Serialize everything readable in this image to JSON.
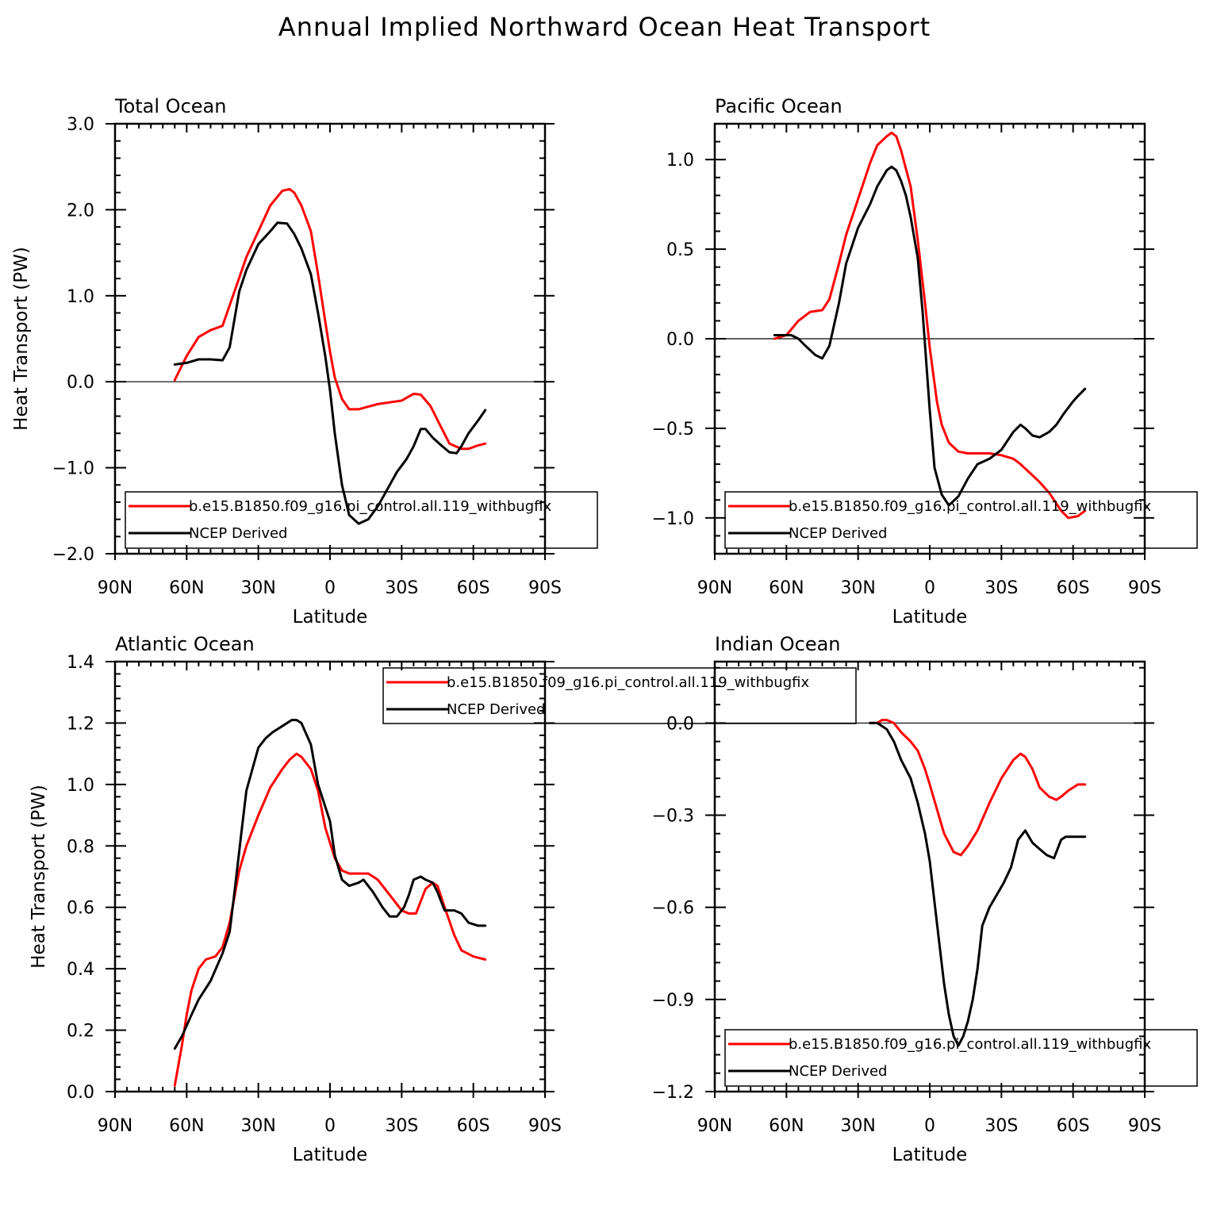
{
  "title": "Annual Implied Northward Ocean Heat Transport",
  "colors": {
    "model": "#ff0000",
    "obs": "#000000",
    "axis": "#000000",
    "background": "#ffffff"
  },
  "legend": {
    "model_label": "b.e15.B1850.f09_g16.pi_control.all.119_withbugfix",
    "obs_label": "NCEP Derived"
  },
  "chart_data": [
    {
      "type": "line",
      "title": "Total Ocean",
      "xlabel": "Latitude",
      "ylabel": "Heat Transport (PW)",
      "xlim": [
        90,
        -90
      ],
      "ylim": [
        -2.0,
        3.0
      ],
      "xticks": [
        90,
        60,
        30,
        0,
        -30,
        -60,
        -90
      ],
      "xtick_labels": [
        "90N",
        "60N",
        "30N",
        "0",
        "30S",
        "60S",
        "90S"
      ],
      "yticks": [
        -2.0,
        -1.0,
        0.0,
        1.0,
        2.0,
        3.0
      ],
      "ytick_labels": [
        "−2.0",
        "−1.0",
        "0.0",
        "1.0",
        "2.0",
        "3.0"
      ],
      "legend_position": "bottom",
      "series": [
        {
          "name": "b.e15.B1850.f09_g16.pi_control.all.119_withbugfix",
          "x": [
            65,
            60,
            55,
            50,
            45,
            40,
            35,
            30,
            25,
            20,
            17,
            15,
            12,
            8,
            5,
            2,
            0,
            -2,
            -5,
            -8,
            -12,
            -16,
            -20,
            -25,
            -30,
            -35,
            -38,
            -42,
            -46,
            -50,
            -55,
            -58,
            -62,
            -65
          ],
          "y": [
            0.02,
            0.3,
            0.52,
            0.6,
            0.65,
            1.05,
            1.45,
            1.75,
            2.05,
            2.22,
            2.24,
            2.2,
            2.05,
            1.75,
            1.25,
            0.7,
            0.35,
            0.05,
            -0.2,
            -0.32,
            -0.32,
            -0.29,
            -0.26,
            -0.24,
            -0.22,
            -0.14,
            -0.15,
            -0.28,
            -0.5,
            -0.72,
            -0.78,
            -0.78,
            -0.74,
            -0.72
          ]
        },
        {
          "name": "NCEP Derived",
          "x": [
            65,
            60,
            55,
            50,
            45,
            42,
            38,
            35,
            30,
            25,
            22,
            18,
            15,
            12,
            8,
            5,
            2,
            0,
            -2,
            -5,
            -8,
            -12,
            -16,
            -20,
            -25,
            -28,
            -32,
            -35,
            -38,
            -40,
            -43,
            -47,
            -50,
            -53,
            -55,
            -58,
            -62,
            -65
          ],
          "y": [
            0.2,
            0.22,
            0.26,
            0.26,
            0.25,
            0.4,
            1.05,
            1.3,
            1.6,
            1.75,
            1.85,
            1.84,
            1.72,
            1.55,
            1.25,
            0.8,
            0.3,
            -0.1,
            -0.6,
            -1.2,
            -1.55,
            -1.65,
            -1.6,
            -1.45,
            -1.2,
            -1.05,
            -0.9,
            -0.75,
            -0.55,
            -0.55,
            -0.65,
            -0.75,
            -0.82,
            -0.83,
            -0.75,
            -0.6,
            -0.45,
            -0.33
          ]
        }
      ]
    },
    {
      "type": "line",
      "title": "Pacific Ocean",
      "xlabel": "Latitude",
      "ylabel": "",
      "xlim": [
        90,
        -90
      ],
      "ylim": [
        -1.2,
        1.2
      ],
      "xticks": [
        90,
        60,
        30,
        0,
        -30,
        -60,
        -90
      ],
      "xtick_labels": [
        "90N",
        "60N",
        "30N",
        "0",
        "30S",
        "60S",
        "90S"
      ],
      "yticks": [
        -1.0,
        -0.5,
        0.0,
        0.5,
        1.0
      ],
      "ytick_labels": [
        "−1.0",
        "−0.5",
        "0.0",
        "0.5",
        "1.0"
      ],
      "legend_position": "bottom",
      "series": [
        {
          "name": "b.e15.B1850.f09_g16.pi_control.all.119_withbugfix",
          "x": [
            65,
            60,
            55,
            50,
            45,
            42,
            38,
            35,
            30,
            25,
            22,
            18,
            16,
            14,
            12,
            8,
            5,
            2,
            0,
            -3,
            -5,
            -8,
            -12,
            -16,
            -20,
            -25,
            -30,
            -35,
            -38,
            -42,
            -46,
            -50,
            -55,
            -58,
            -62,
            -65
          ],
          "y": [
            0,
            0.02,
            0.1,
            0.15,
            0.16,
            0.22,
            0.42,
            0.58,
            0.78,
            0.98,
            1.08,
            1.13,
            1.15,
            1.13,
            1.05,
            0.85,
            0.55,
            0.2,
            -0.05,
            -0.35,
            -0.48,
            -0.58,
            -0.63,
            -0.64,
            -0.64,
            -0.64,
            -0.65,
            -0.67,
            -0.7,
            -0.75,
            -0.8,
            -0.86,
            -0.96,
            -1.0,
            -0.99,
            -0.96
          ]
        },
        {
          "name": "NCEP Derived",
          "x": [
            65,
            62,
            58,
            55,
            52,
            48,
            45,
            42,
            38,
            35,
            30,
            25,
            22,
            18,
            16,
            14,
            12,
            10,
            8,
            5,
            3,
            0,
            -2,
            -5,
            -8,
            -12,
            -16,
            -20,
            -25,
            -30,
            -35,
            -38,
            -40,
            -43,
            -46,
            -50,
            -53,
            -56,
            -60,
            -62,
            -65
          ],
          "y": [
            0.02,
            0.02,
            0.02,
            0.0,
            -0.04,
            -0.09,
            -0.11,
            -0.04,
            0.2,
            0.42,
            0.62,
            0.75,
            0.85,
            0.94,
            0.96,
            0.94,
            0.88,
            0.8,
            0.68,
            0.45,
            0.15,
            -0.4,
            -0.72,
            -0.87,
            -0.93,
            -0.88,
            -0.78,
            -0.7,
            -0.67,
            -0.62,
            -0.52,
            -0.48,
            -0.5,
            -0.54,
            -0.55,
            -0.52,
            -0.48,
            -0.42,
            -0.35,
            -0.32,
            -0.28
          ]
        }
      ]
    },
    {
      "type": "line",
      "title": "Atlantic Ocean",
      "xlabel": "Latitude",
      "ylabel": "Heat Transport (PW)",
      "xlim": [
        90,
        -90
      ],
      "ylim": [
        0.0,
        1.4
      ],
      "xticks": [
        90,
        60,
        30,
        0,
        -30,
        -60,
        -90
      ],
      "xtick_labels": [
        "90N",
        "60N",
        "30N",
        "0",
        "30S",
        "60S",
        "90S"
      ],
      "yticks": [
        0.0,
        0.2,
        0.4,
        0.6,
        0.8,
        1.0,
        1.2,
        1.4
      ],
      "ytick_labels": [
        "0.0",
        "0.2",
        "0.4",
        "0.6",
        "0.8",
        "1.0",
        "1.2",
        "1.4"
      ],
      "legend_position": "top-center",
      "series": [
        {
          "name": "b.e15.B1850.f09_g16.pi_control.all.119_withbugfix",
          "x": [
            65,
            62,
            60,
            58,
            55,
            52,
            48,
            45,
            42,
            38,
            35,
            30,
            25,
            20,
            17,
            14,
            12,
            8,
            5,
            2,
            -2,
            -5,
            -8,
            -12,
            -16,
            -20,
            -25,
            -28,
            -30,
            -33,
            -36,
            -38,
            -40,
            -43,
            -45,
            -48,
            -52,
            -55,
            -60,
            -65
          ],
          "y": [
            0.02,
            0.15,
            0.25,
            0.33,
            0.4,
            0.43,
            0.44,
            0.47,
            0.55,
            0.72,
            0.8,
            0.9,
            0.99,
            1.05,
            1.08,
            1.1,
            1.09,
            1.05,
            0.98,
            0.86,
            0.76,
            0.72,
            0.71,
            0.71,
            0.71,
            0.69,
            0.64,
            0.61,
            0.59,
            0.58,
            0.58,
            0.62,
            0.66,
            0.68,
            0.67,
            0.6,
            0.51,
            0.46,
            0.44,
            0.43
          ]
        },
        {
          "name": "NCEP Derived",
          "x": [
            65,
            62,
            58,
            55,
            50,
            45,
            42,
            40,
            37,
            35,
            30,
            27,
            24,
            20,
            16,
            14,
            12,
            8,
            5,
            0,
            -2,
            -5,
            -8,
            -12,
            -14,
            -18,
            -22,
            -25,
            -28,
            -31,
            -33,
            -35,
            -38,
            -40,
            -43,
            -45,
            -48,
            -52,
            -55,
            -58,
            -62,
            -65
          ],
          "y": [
            0.14,
            0.18,
            0.25,
            0.3,
            0.36,
            0.45,
            0.52,
            0.65,
            0.85,
            0.98,
            1.12,
            1.15,
            1.17,
            1.19,
            1.21,
            1.21,
            1.2,
            1.13,
            1.0,
            0.88,
            0.77,
            0.69,
            0.67,
            0.68,
            0.69,
            0.65,
            0.6,
            0.57,
            0.57,
            0.6,
            0.64,
            0.69,
            0.7,
            0.69,
            0.68,
            0.65,
            0.59,
            0.59,
            0.58,
            0.55,
            0.54,
            0.54
          ]
        }
      ]
    },
    {
      "type": "line",
      "title": "Indian Ocean",
      "xlabel": "Latitude",
      "ylabel": "",
      "xlim": [
        90,
        -90
      ],
      "ylim": [
        -1.2,
        0.2
      ],
      "xticks": [
        90,
        60,
        30,
        0,
        -30,
        -60,
        -90
      ],
      "xtick_labels": [
        "90N",
        "60N",
        "30N",
        "0",
        "30S",
        "60S",
        "90S"
      ],
      "yticks": [
        -1.2,
        -0.9,
        -0.6,
        -0.3,
        0.0
      ],
      "ytick_labels": [
        "−1.2",
        "−0.9",
        "−0.6",
        "−0.3",
        "0.0"
      ],
      "legend_position": "bottom",
      "series": [
        {
          "name": "b.e15.B1850.f09_g16.pi_control.all.119_withbugfix",
          "x": [
            25,
            22,
            20,
            18,
            15,
            12,
            8,
            5,
            2,
            0,
            -3,
            -6,
            -10,
            -13,
            -16,
            -20,
            -25,
            -30,
            -35,
            -38,
            -40,
            -43,
            -46,
            -50,
            -53,
            -55,
            -58,
            -62,
            -65
          ],
          "y": [
            0,
            0.0,
            0.01,
            0.01,
            0.0,
            -0.03,
            -0.06,
            -0.09,
            -0.15,
            -0.2,
            -0.28,
            -0.36,
            -0.42,
            -0.43,
            -0.4,
            -0.35,
            -0.26,
            -0.18,
            -0.12,
            -0.1,
            -0.11,
            -0.15,
            -0.21,
            -0.24,
            -0.25,
            -0.24,
            -0.22,
            -0.2,
            -0.2
          ]
        },
        {
          "name": "NCEP Derived",
          "x": [
            25,
            22,
            20,
            18,
            15,
            12,
            8,
            5,
            2,
            0,
            -3,
            -6,
            -8,
            -10,
            -12,
            -14,
            -16,
            -18,
            -20,
            -22,
            -25,
            -28,
            -31,
            -34,
            -37,
            -40,
            -43,
            -46,
            -49,
            -52,
            -55,
            -57,
            -60,
            -62,
            -65
          ],
          "y": [
            0,
            0.0,
            -0.01,
            -0.02,
            -0.06,
            -0.12,
            -0.18,
            -0.26,
            -0.36,
            -0.45,
            -0.65,
            -0.85,
            -0.95,
            -1.02,
            -1.05,
            -1.02,
            -0.97,
            -0.9,
            -0.8,
            -0.66,
            -0.6,
            -0.56,
            -0.52,
            -0.47,
            -0.38,
            -0.35,
            -0.39,
            -0.41,
            -0.43,
            -0.44,
            -0.38,
            -0.37,
            -0.37,
            -0.37,
            -0.37
          ]
        }
      ]
    }
  ]
}
